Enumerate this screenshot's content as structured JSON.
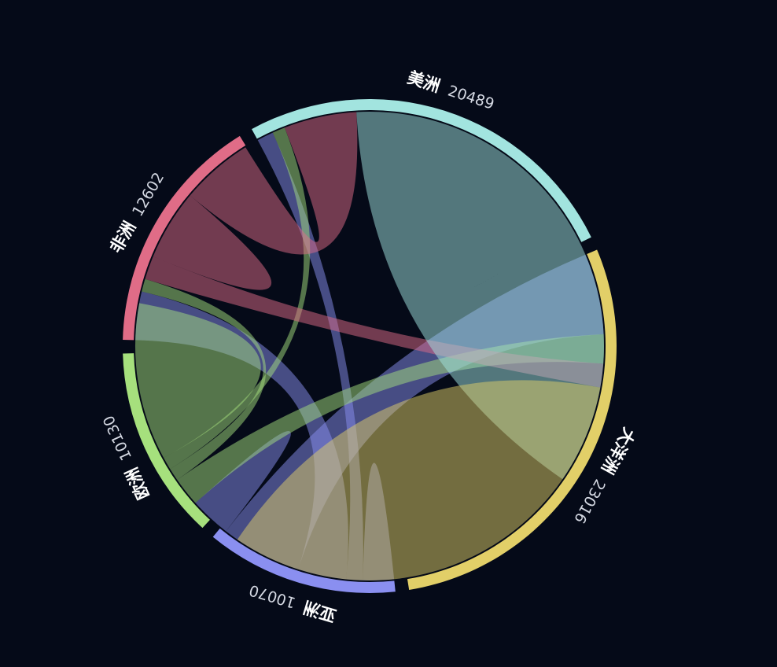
{
  "chart_data": {
    "type": "chord",
    "segments": [
      {
        "name": "亚洲",
        "value": 10070,
        "color": "#8a8ff0"
      },
      {
        "name": "欧洲",
        "value": 10130,
        "color": "#a6e07d"
      },
      {
        "name": "非洲",
        "value": 12602,
        "color": "#e06c87"
      },
      {
        "name": "美洲",
        "value": 20489,
        "color": "#a2e4df"
      },
      {
        "name": "大洋洲",
        "value": 23016,
        "color": "#e2cf68"
      }
    ],
    "flows": [
      {
        "source": "亚洲",
        "target": "亚洲",
        "value": 850
      },
      {
        "source": "亚洲",
        "target": "美洲",
        "value": 910
      },
      {
        "source": "亚洲",
        "target": "非洲",
        "value": 2660
      },
      {
        "source": "亚洲",
        "target": "大洋洲",
        "value": 4450
      },
      {
        "source": "亚洲",
        "target": "欧洲",
        "value": 1200
      },
      {
        "source": "欧洲",
        "target": "大洋洲",
        "value": 1600
      },
      {
        "source": "欧洲",
        "target": "非洲",
        "value": 700
      },
      {
        "source": "欧洲",
        "target": "美洲",
        "value": 700
      },
      {
        "source": "欧洲",
        "target": "欧洲",
        "value": 4330
      },
      {
        "source": "非洲",
        "target": "大洋洲",
        "value": 1300
      },
      {
        "source": "非洲",
        "target": "非洲",
        "value": 1942
      },
      {
        "source": "非洲",
        "target": "美洲",
        "value": 4000
      },
      {
        "source": "美洲",
        "target": "美洲",
        "value": 14179
      },
      {
        "source": "大洋洲",
        "target": "大洋洲",
        "value": 12666
      }
    ]
  }
}
